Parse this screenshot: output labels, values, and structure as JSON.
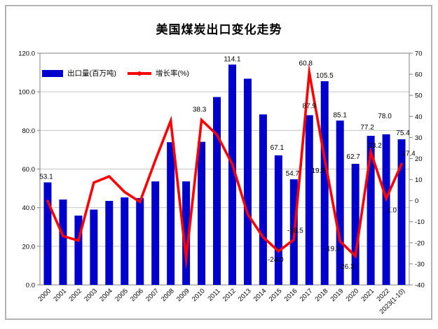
{
  "frame": {
    "border_color": "#b3b3b3",
    "background": "#ffffff"
  },
  "title": "美国煤炭出口变化走势",
  "legend": {
    "bar_label": "出口量(百万吨)",
    "line_label": "增长率(%)",
    "bar_color": "#0000cc",
    "line_color": "#ff0000"
  },
  "chart_data": {
    "type": "bar+line",
    "title": "美国煤炭出口变化走势",
    "grid": true,
    "grid_color": "#c6c6c6",
    "axis_color": "#808080",
    "legend_position": "inside-top-left",
    "categories": [
      "2000",
      "2001",
      "2002",
      "2003",
      "2004",
      "2005",
      "2006",
      "2007",
      "2008",
      "2009",
      "2010",
      "2011",
      "2012",
      "2013",
      "2014",
      "2015",
      "2016",
      "2017",
      "2018",
      "2019",
      "2020",
      "2021",
      "2022",
      "2023(1-10)"
    ],
    "left_axis": {
      "label": "出口量(百万吨)",
      "min": 0,
      "max": 120,
      "step": 20,
      "decimals": 1
    },
    "right_axis": {
      "label": "增长率(%)",
      "min": -40,
      "max": 70,
      "step": 10,
      "decimals": 0
    },
    "series": [
      {
        "name": "出口量(百万吨)",
        "type": "bar",
        "axis": "left",
        "color": "#0000cc",
        "values": [
          53.1,
          44.2,
          35.9,
          39.0,
          43.5,
          45.3,
          45.0,
          53.6,
          73.9,
          53.6,
          74.1,
          97.3,
          114.1,
          106.8,
          88.3,
          67.1,
          54.7,
          87.9,
          105.5,
          85.1,
          62.7,
          77.2,
          78.0,
          75.4
        ],
        "point_labels": [
          {
            "i": 0,
            "text": "53.1",
            "dx": -2,
            "dy": -5
          },
          {
            "i": 12,
            "text": "114.1",
            "dx": 0,
            "dy": -5
          },
          {
            "i": 15,
            "text": "67.1",
            "dx": -2,
            "dy": -8
          },
          {
            "i": 16,
            "text": "54.7",
            "dx": -2,
            "dy": -5
          },
          {
            "i": 17,
            "text": "87.9",
            "dx": 0,
            "dy": -10
          },
          {
            "i": 18,
            "text": "105.5",
            "dx": 0,
            "dy": -5
          },
          {
            "i": 19,
            "text": "85.1",
            "dx": 0,
            "dy": -5
          },
          {
            "i": 20,
            "text": "62.7",
            "dx": -3,
            "dy": -7
          },
          {
            "i": 21,
            "text": "77.2",
            "dx": -5,
            "dy": -9
          },
          {
            "i": 22,
            "text": "78.0",
            "dx": -2,
            "dy": -23
          },
          {
            "i": 23,
            "text": "75.4",
            "dx": 2,
            "dy": -6
          }
        ]
      },
      {
        "name": "增长率(%)",
        "type": "line",
        "axis": "right",
        "color": "#ff0000",
        "values": [
          -0.2,
          -16.8,
          -19.0,
          8.6,
          11.5,
          4.1,
          -0.6,
          19.2,
          37.9,
          -27.5,
          38.3,
          31.3,
          17.3,
          -6.4,
          -17.3,
          -24.0,
          -18.5,
          60.8,
          19.9,
          -19.3,
          -26.3,
          23.2,
          1.0,
          17.4
        ],
        "point_labels": [
          {
            "i": 10,
            "text": "38.3",
            "dx": -3,
            "dy": -12
          },
          {
            "i": 15,
            "text": "-24.0",
            "dx": -4,
            "dy": 15
          },
          {
            "i": 16,
            "text": "-18.5",
            "dx": 2,
            "dy": -10
          },
          {
            "i": 17,
            "text": "60.8",
            "dx": -5,
            "dy": -10
          },
          {
            "i": 18,
            "text": "19.9",
            "dx": -9,
            "dy": 20
          },
          {
            "i": 19,
            "text": "-19.3",
            "dx": -11,
            "dy": 14
          },
          {
            "i": 20,
            "text": "-26.3",
            "dx": -13,
            "dy": 18
          },
          {
            "i": 21,
            "text": "23.2",
            "dx": 6,
            "dy": -6
          },
          {
            "i": 22,
            "text": "1.0",
            "dx": 8,
            "dy": 20
          },
          {
            "i": 23,
            "text": "17.4",
            "dx": 10,
            "dy": -12
          }
        ]
      }
    ]
  }
}
